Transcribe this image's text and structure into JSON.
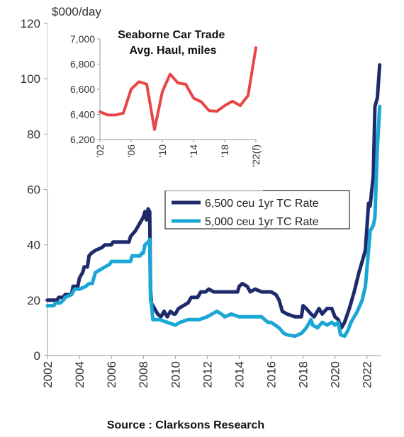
{
  "source": "Source : Clarksons Research",
  "chart_data": [
    {
      "type": "line",
      "ylabel": "$000/day",
      "xlim": [
        2002,
        2022.9
      ],
      "ylim": [
        0,
        120
      ],
      "y_ticks": [
        0,
        20,
        40,
        60,
        80,
        100,
        120
      ],
      "x_ticks": [
        2002,
        2004,
        2006,
        2008,
        2010,
        2012,
        2014,
        2016,
        2018,
        2020,
        2022
      ],
      "legend_position": "right-middle",
      "series": [
        {
          "name": "6,500 ceu 1yr TC Rate",
          "color": "#1f2a6b",
          "points": [
            [
              2002.0,
              20
            ],
            [
              2002.6,
              20
            ],
            [
              2002.7,
              21
            ],
            [
              2003.0,
              21
            ],
            [
              2003.1,
              22
            ],
            [
              2003.5,
              22
            ],
            [
              2003.6,
              25
            ],
            [
              2003.9,
              25
            ],
            [
              2004.0,
              28
            ],
            [
              2004.2,
              30
            ],
            [
              2004.3,
              32
            ],
            [
              2004.5,
              32
            ],
            [
              2004.6,
              36
            ],
            [
              2004.75,
              37
            ],
            [
              2005.0,
              38
            ],
            [
              2005.4,
              39
            ],
            [
              2005.6,
              40
            ],
            [
              2006.0,
              40
            ],
            [
              2006.1,
              41
            ],
            [
              2007.1,
              41
            ],
            [
              2007.2,
              43
            ],
            [
              2007.5,
              45
            ],
            [
              2007.7,
              47
            ],
            [
              2007.8,
              48
            ],
            [
              2008.0,
              50
            ],
            [
              2008.1,
              52
            ],
            [
              2008.2,
              49
            ],
            [
              2008.3,
              53
            ],
            [
              2008.4,
              52
            ],
            [
              2008.45,
              24
            ],
            [
              2008.5,
              19
            ],
            [
              2008.7,
              17
            ],
            [
              2008.9,
              15
            ],
            [
              2009.1,
              14
            ],
            [
              2009.3,
              16
            ],
            [
              2009.5,
              14
            ],
            [
              2009.7,
              16
            ],
            [
              2009.9,
              15
            ],
            [
              2010.0,
              15
            ],
            [
              2010.2,
              17
            ],
            [
              2010.5,
              18
            ],
            [
              2010.8,
              19
            ],
            [
              2011.0,
              21
            ],
            [
              2011.4,
              21
            ],
            [
              2011.6,
              23
            ],
            [
              2011.9,
              23
            ],
            [
              2012.1,
              24
            ],
            [
              2012.4,
              23
            ],
            [
              2013.0,
              23
            ],
            [
              2013.9,
              23
            ],
            [
              2014.0,
              25
            ],
            [
              2014.2,
              26
            ],
            [
              2014.5,
              25
            ],
            [
              2014.7,
              23
            ],
            [
              2015.0,
              24
            ],
            [
              2015.4,
              23
            ],
            [
              2016.0,
              23
            ],
            [
              2016.3,
              22
            ],
            [
              2016.5,
              20
            ],
            [
              2016.7,
              16
            ],
            [
              2017.0,
              15
            ],
            [
              2017.5,
              14
            ],
            [
              2017.9,
              14
            ],
            [
              2018.0,
              18
            ],
            [
              2018.2,
              17
            ],
            [
              2018.5,
              15
            ],
            [
              2018.7,
              14
            ],
            [
              2019.0,
              17
            ],
            [
              2019.2,
              15
            ],
            [
              2019.5,
              17
            ],
            [
              2019.8,
              17
            ],
            [
              2020.0,
              14
            ],
            [
              2020.2,
              13
            ],
            [
              2020.4,
              10
            ],
            [
              2020.6,
              12
            ],
            [
              2020.9,
              17
            ],
            [
              2021.2,
              23
            ],
            [
              2021.5,
              30
            ],
            [
              2021.7,
              34
            ],
            [
              2021.9,
              38
            ],
            [
              2022.1,
              55
            ],
            [
              2022.2,
              54
            ],
            [
              2022.4,
              65
            ],
            [
              2022.5,
              90
            ],
            [
              2022.65,
              93
            ],
            [
              2022.8,
              105
            ]
          ]
        },
        {
          "name": "5,000 ceu 1yr TC Rate",
          "color": "#1aa7d6",
          "points": [
            [
              2002.0,
              18
            ],
            [
              2002.4,
              18
            ],
            [
              2002.5,
              19
            ],
            [
              2002.8,
              19
            ],
            [
              2003.0,
              20
            ],
            [
              2003.1,
              21
            ],
            [
              2003.5,
              22
            ],
            [
              2003.7,
              24
            ],
            [
              2004.0,
              24
            ],
            [
              2004.4,
              25
            ],
            [
              2004.6,
              26
            ],
            [
              2004.8,
              26
            ],
            [
              2005.0,
              30
            ],
            [
              2005.3,
              31
            ],
            [
              2005.6,
              32
            ],
            [
              2005.9,
              33
            ],
            [
              2006.0,
              34
            ],
            [
              2007.2,
              34
            ],
            [
              2007.3,
              36
            ],
            [
              2007.8,
              36
            ],
            [
              2007.9,
              37
            ],
            [
              2008.0,
              37
            ],
            [
              2008.1,
              40
            ],
            [
              2008.3,
              41
            ],
            [
              2008.4,
              42
            ],
            [
              2008.45,
              20
            ],
            [
              2008.5,
              19
            ],
            [
              2008.6,
              13
            ],
            [
              2009.0,
              13
            ],
            [
              2009.5,
              12
            ],
            [
              2010.0,
              11
            ],
            [
              2010.3,
              12
            ],
            [
              2010.8,
              13
            ],
            [
              2011.5,
              13
            ],
            [
              2012.0,
              14
            ],
            [
              2012.3,
              15
            ],
            [
              2012.6,
              16
            ],
            [
              2012.9,
              15
            ],
            [
              2013.1,
              14
            ],
            [
              2013.5,
              15
            ],
            [
              2014.0,
              14
            ],
            [
              2014.5,
              14
            ],
            [
              2015.0,
              14
            ],
            [
              2015.4,
              14
            ],
            [
              2015.8,
              12
            ],
            [
              2016.0,
              12
            ],
            [
              2016.5,
              10
            ],
            [
              2016.8,
              8
            ],
            [
              2017.0,
              7.5
            ],
            [
              2017.5,
              7
            ],
            [
              2017.9,
              8
            ],
            [
              2018.2,
              10
            ],
            [
              2018.4,
              12
            ],
            [
              2018.5,
              13
            ],
            [
              2018.6,
              11
            ],
            [
              2018.9,
              10
            ],
            [
              2019.2,
              12
            ],
            [
              2019.5,
              11
            ],
            [
              2019.8,
              12
            ],
            [
              2020.0,
              11
            ],
            [
              2020.2,
              12
            ],
            [
              2020.35,
              7.5
            ],
            [
              2020.6,
              7
            ],
            [
              2020.8,
              9
            ],
            [
              2021.0,
              12
            ],
            [
              2021.4,
              16
            ],
            [
              2021.7,
              20
            ],
            [
              2021.9,
              25
            ],
            [
              2022.1,
              38
            ],
            [
              2022.2,
              45
            ],
            [
              2022.4,
              47
            ],
            [
              2022.5,
              50
            ],
            [
              2022.65,
              75
            ],
            [
              2022.8,
              90
            ]
          ]
        }
      ]
    },
    {
      "type": "line",
      "title": "Seaborne Car Trade\nAvg. Haul, miles",
      "ylim": [
        6200,
        7000
      ],
      "y_ticks": [
        6200,
        6400,
        6600,
        6800,
        7000
      ],
      "y_tick_labels": [
        "6,200",
        "6,400",
        "6,600",
        "6,800",
        "7,000"
      ],
      "x_ticks": [
        2002,
        2006,
        2010,
        2014,
        2018,
        2022
      ],
      "x_tick_labels": [
        "'02",
        "'06",
        "'10",
        "'14",
        "'18",
        "'22(f)"
      ],
      "series": [
        {
          "color": "#e84545",
          "points": [
            [
              2002,
              6420
            ],
            [
              2003,
              6395
            ],
            [
              2004,
              6395
            ],
            [
              2005,
              6410
            ],
            [
              2006,
              6600
            ],
            [
              2007,
              6660
            ],
            [
              2008,
              6640
            ],
            [
              2009,
              6280
            ],
            [
              2010,
              6580
            ],
            [
              2011,
              6720
            ],
            [
              2012,
              6650
            ],
            [
              2013,
              6640
            ],
            [
              2014,
              6530
            ],
            [
              2015,
              6500
            ],
            [
              2016,
              6430
            ],
            [
              2017,
              6425
            ],
            [
              2018,
              6470
            ],
            [
              2019,
              6505
            ],
            [
              2020,
              6470
            ],
            [
              2021,
              6550
            ],
            [
              2022,
              6930
            ]
          ]
        }
      ]
    }
  ]
}
